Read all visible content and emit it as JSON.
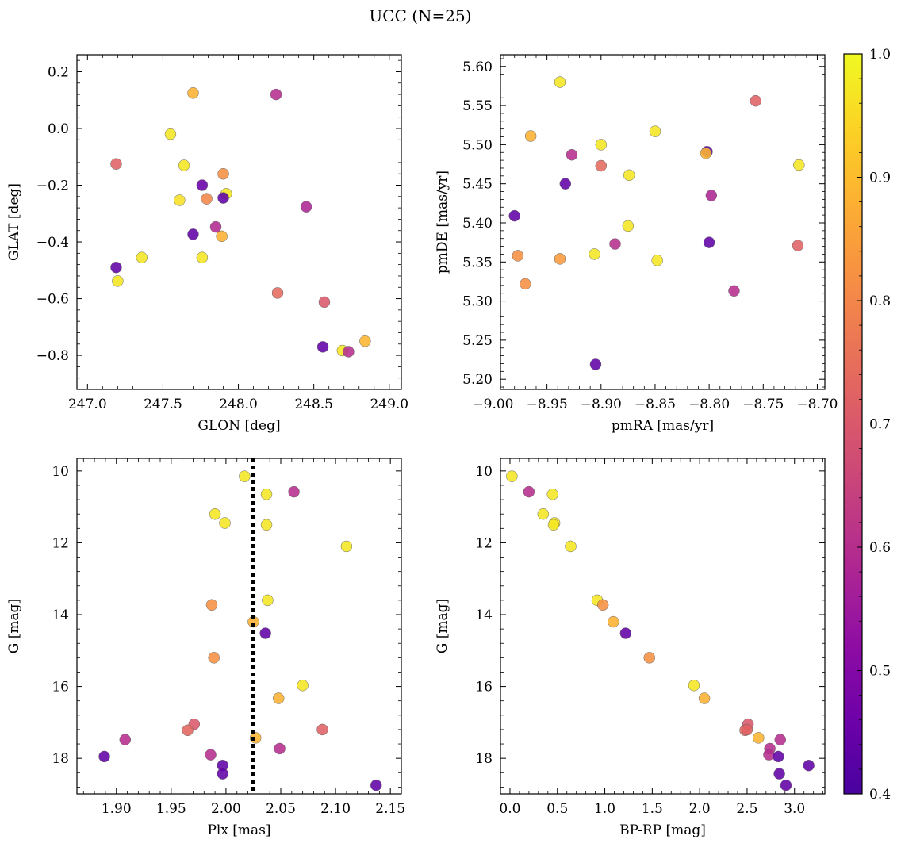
{
  "title": "UCC (N=25)",
  "colorbar": {
    "min": 0.4,
    "max": 1.0,
    "ticks": [
      0.4,
      0.5,
      0.6,
      0.7,
      0.8,
      0.9,
      1.0
    ],
    "tick_labels": [
      "0.4",
      "0.5",
      "0.6",
      "0.7",
      "0.8",
      "0.9",
      "1.0"
    ],
    "colormap": "plasma"
  },
  "chart_data": [
    {
      "type": "scatter",
      "xlabel": "GLON [deg]",
      "ylabel": "GLAT [deg]",
      "xlim": [
        246.93,
        249.08
      ],
      "ylim": [
        -0.92,
        0.26
      ],
      "y_inverted": false,
      "xticks": [
        247.0,
        247.5,
        248.0,
        248.5,
        249.0
      ],
      "xtick_labels": [
        "247.0",
        "247.5",
        "248.0",
        "248.5",
        "249.0"
      ],
      "yticks": [
        0.2,
        0.0,
        -0.2,
        -0.4,
        -0.6,
        -0.8
      ],
      "ytick_labels": [
        "0.2",
        "0.0",
        "−0.2",
        "−0.4",
        "−0.6",
        "−0.8"
      ],
      "points": [
        {
          "x": 247.7,
          "y": 0.125,
          "c": 0.88
        },
        {
          "x": 248.25,
          "y": 0.12,
          "c": 0.6
        },
        {
          "x": 247.55,
          "y": -0.02,
          "c": 0.97
        },
        {
          "x": 247.19,
          "y": -0.125,
          "c": 0.72
        },
        {
          "x": 247.64,
          "y": -0.13,
          "c": 0.97
        },
        {
          "x": 247.9,
          "y": -0.16,
          "c": 0.82
        },
        {
          "x": 247.76,
          "y": -0.2,
          "c": 0.45
        },
        {
          "x": 247.92,
          "y": -0.23,
          "c": 0.97
        },
        {
          "x": 247.9,
          "y": -0.245,
          "c": 0.44
        },
        {
          "x": 247.79,
          "y": -0.248,
          "c": 0.8
        },
        {
          "x": 247.61,
          "y": -0.253,
          "c": 0.96
        },
        {
          "x": 248.45,
          "y": -0.276,
          "c": 0.58
        },
        {
          "x": 247.85,
          "y": -0.347,
          "c": 0.59
        },
        {
          "x": 247.7,
          "y": -0.373,
          "c": 0.44
        },
        {
          "x": 247.89,
          "y": -0.38,
          "c": 0.88
        },
        {
          "x": 247.36,
          "y": -0.455,
          "c": 0.97
        },
        {
          "x": 247.76,
          "y": -0.455,
          "c": 0.97
        },
        {
          "x": 247.19,
          "y": -0.49,
          "c": 0.44
        },
        {
          "x": 247.2,
          "y": -0.538,
          "c": 0.97
        },
        {
          "x": 248.26,
          "y": -0.58,
          "c": 0.74
        },
        {
          "x": 248.57,
          "y": -0.612,
          "c": 0.7
        },
        {
          "x": 248.56,
          "y": -0.77,
          "c": 0.44
        },
        {
          "x": 248.84,
          "y": -0.75,
          "c": 0.89
        },
        {
          "x": 248.69,
          "y": -0.783,
          "c": 0.97
        },
        {
          "x": 248.73,
          "y": -0.787,
          "c": 0.6
        }
      ]
    },
    {
      "type": "scatter",
      "xlabel": "pmRA [mas/yr]",
      "ylabel": "pmDE [mas/yr]",
      "xlim": [
        -8.993,
        -8.693
      ],
      "ylim": [
        5.187,
        5.615
      ],
      "y_inverted": false,
      "xticks": [
        -9.0,
        -8.95,
        -8.9,
        -8.85,
        -8.8,
        -8.75,
        -8.7
      ],
      "xtick_labels": [
        "−9.00",
        "−8.95",
        "−8.90",
        "−8.85",
        "−8.80",
        "−8.75",
        "−8.70"
      ],
      "yticks": [
        5.2,
        5.25,
        5.3,
        5.35,
        5.4,
        5.45,
        5.5,
        5.55,
        5.6
      ],
      "ytick_labels": [
        "5.20",
        "5.25",
        "5.30",
        "5.35",
        "5.40",
        "5.45",
        "5.50",
        "5.55",
        "5.60"
      ],
      "points": [
        {
          "x": -8.938,
          "y": 5.58,
          "c": 0.97
        },
        {
          "x": -8.757,
          "y": 5.556,
          "c": 0.72
        },
        {
          "x": -8.85,
          "y": 5.517,
          "c": 0.97
        },
        {
          "x": -8.965,
          "y": 5.511,
          "c": 0.88
        },
        {
          "x": -8.9,
          "y": 5.5,
          "c": 0.97
        },
        {
          "x": -8.802,
          "y": 5.491,
          "c": 0.44
        },
        {
          "x": -8.803,
          "y": 5.489,
          "c": 0.89
        },
        {
          "x": -8.927,
          "y": 5.487,
          "c": 0.6
        },
        {
          "x": -8.9,
          "y": 5.473,
          "c": 0.74
        },
        {
          "x": -8.717,
          "y": 5.474,
          "c": 0.97
        },
        {
          "x": -8.874,
          "y": 5.461,
          "c": 0.97
        },
        {
          "x": -8.933,
          "y": 5.45,
          "c": 0.44
        },
        {
          "x": -8.798,
          "y": 5.435,
          "c": 0.58
        },
        {
          "x": -8.98,
          "y": 5.409,
          "c": 0.44
        },
        {
          "x": -8.875,
          "y": 5.396,
          "c": 0.97
        },
        {
          "x": -8.8,
          "y": 5.375,
          "c": 0.44
        },
        {
          "x": -8.887,
          "y": 5.373,
          "c": 0.6
        },
        {
          "x": -8.718,
          "y": 5.371,
          "c": 0.72
        },
        {
          "x": -8.906,
          "y": 5.36,
          "c": 0.97
        },
        {
          "x": -8.977,
          "y": 5.358,
          "c": 0.82
        },
        {
          "x": -8.938,
          "y": 5.354,
          "c": 0.84
        },
        {
          "x": -8.848,
          "y": 5.352,
          "c": 0.97
        },
        {
          "x": -8.97,
          "y": 5.322,
          "c": 0.82
        },
        {
          "x": -8.777,
          "y": 5.313,
          "c": 0.6
        },
        {
          "x": -8.905,
          "y": 5.219,
          "c": 0.44
        }
      ]
    },
    {
      "type": "scatter",
      "xlabel": "Plx [mas]",
      "ylabel": "G [mag]",
      "xlim": [
        1.864,
        2.16
      ],
      "ylim": [
        18.99,
        9.65
      ],
      "y_inverted": true,
      "xticks": [
        1.9,
        1.95,
        2.0,
        2.05,
        2.1,
        2.15
      ],
      "xtick_labels": [
        "1.90",
        "1.95",
        "2.00",
        "2.05",
        "2.10",
        "2.15"
      ],
      "yticks": [
        10,
        12,
        14,
        16,
        18
      ],
      "ytick_labels": [
        "10",
        "12",
        "14",
        "16",
        "18"
      ],
      "vline": {
        "x": 2.025,
        "style": "dotted"
      },
      "points": [
        {
          "x": 2.017,
          "y": 10.15,
          "c": 0.97
        },
        {
          "x": 2.062,
          "y": 10.58,
          "c": 0.6
        },
        {
          "x": 2.037,
          "y": 10.65,
          "c": 0.97
        },
        {
          "x": 1.99,
          "y": 11.2,
          "c": 0.97
        },
        {
          "x": 1.999,
          "y": 11.45,
          "c": 0.97
        },
        {
          "x": 2.037,
          "y": 11.5,
          "c": 0.97
        },
        {
          "x": 2.11,
          "y": 12.1,
          "c": 0.97
        },
        {
          "x": 2.038,
          "y": 13.6,
          "c": 0.97
        },
        {
          "x": 1.987,
          "y": 13.73,
          "c": 0.82
        },
        {
          "x": 2.025,
          "y": 14.2,
          "c": 0.88
        },
        {
          "x": 2.036,
          "y": 14.52,
          "c": 0.44
        },
        {
          "x": 1.989,
          "y": 15.2,
          "c": 0.82
        },
        {
          "x": 2.07,
          "y": 15.97,
          "c": 0.97
        },
        {
          "x": 2.048,
          "y": 16.33,
          "c": 0.88
        },
        {
          "x": 1.971,
          "y": 17.05,
          "c": 0.7
        },
        {
          "x": 1.965,
          "y": 17.22,
          "c": 0.73
        },
        {
          "x": 2.088,
          "y": 17.2,
          "c": 0.72
        },
        {
          "x": 2.027,
          "y": 17.43,
          "c": 0.89
        },
        {
          "x": 1.908,
          "y": 17.48,
          "c": 0.6
        },
        {
          "x": 2.049,
          "y": 17.73,
          "c": 0.6
        },
        {
          "x": 1.986,
          "y": 17.9,
          "c": 0.6
        },
        {
          "x": 1.889,
          "y": 17.95,
          "c": 0.44
        },
        {
          "x": 1.997,
          "y": 18.2,
          "c": 0.44
        },
        {
          "x": 1.997,
          "y": 18.43,
          "c": 0.44
        },
        {
          "x": 2.137,
          "y": 18.75,
          "c": 0.44
        }
      ]
    },
    {
      "type": "scatter",
      "xlabel": "BP-RP [mag]",
      "ylabel": "G [mag]",
      "xlim": [
        -0.1,
        3.32
      ],
      "ylim": [
        18.99,
        9.65
      ],
      "y_inverted": true,
      "xticks": [
        0.0,
        0.5,
        1.0,
        1.5,
        2.0,
        2.5,
        3.0
      ],
      "xtick_labels": [
        "0.0",
        "0.5",
        "1.0",
        "1.5",
        "2.0",
        "2.5",
        "3.0"
      ],
      "yticks": [
        10,
        12,
        14,
        16,
        18
      ],
      "ytick_labels": [
        "10",
        "12",
        "14",
        "16",
        "18"
      ],
      "points": [
        {
          "x": 0.02,
          "y": 10.15,
          "c": 0.97
        },
        {
          "x": 0.2,
          "y": 10.58,
          "c": 0.6
        },
        {
          "x": 0.45,
          "y": 10.65,
          "c": 0.97
        },
        {
          "x": 0.35,
          "y": 11.2,
          "c": 0.97
        },
        {
          "x": 0.47,
          "y": 11.45,
          "c": 0.97
        },
        {
          "x": 0.46,
          "y": 11.5,
          "c": 0.97
        },
        {
          "x": 0.64,
          "y": 12.1,
          "c": 0.97
        },
        {
          "x": 0.92,
          "y": 13.6,
          "c": 0.97
        },
        {
          "x": 0.98,
          "y": 13.73,
          "c": 0.82
        },
        {
          "x": 1.09,
          "y": 14.2,
          "c": 0.88
        },
        {
          "x": 1.22,
          "y": 14.52,
          "c": 0.44
        },
        {
          "x": 1.47,
          "y": 15.2,
          "c": 0.82
        },
        {
          "x": 1.94,
          "y": 15.97,
          "c": 0.97
        },
        {
          "x": 2.05,
          "y": 16.33,
          "c": 0.88
        },
        {
          "x": 2.51,
          "y": 17.05,
          "c": 0.7
        },
        {
          "x": 2.48,
          "y": 17.22,
          "c": 0.73
        },
        {
          "x": 2.5,
          "y": 17.2,
          "c": 0.72
        },
        {
          "x": 2.62,
          "y": 17.43,
          "c": 0.89
        },
        {
          "x": 2.85,
          "y": 17.48,
          "c": 0.6
        },
        {
          "x": 2.74,
          "y": 17.73,
          "c": 0.6
        },
        {
          "x": 2.73,
          "y": 17.9,
          "c": 0.6
        },
        {
          "x": 2.83,
          "y": 17.95,
          "c": 0.44
        },
        {
          "x": 3.15,
          "y": 18.2,
          "c": 0.44
        },
        {
          "x": 2.84,
          "y": 18.43,
          "c": 0.44
        },
        {
          "x": 2.91,
          "y": 18.75,
          "c": 0.44
        }
      ]
    }
  ]
}
